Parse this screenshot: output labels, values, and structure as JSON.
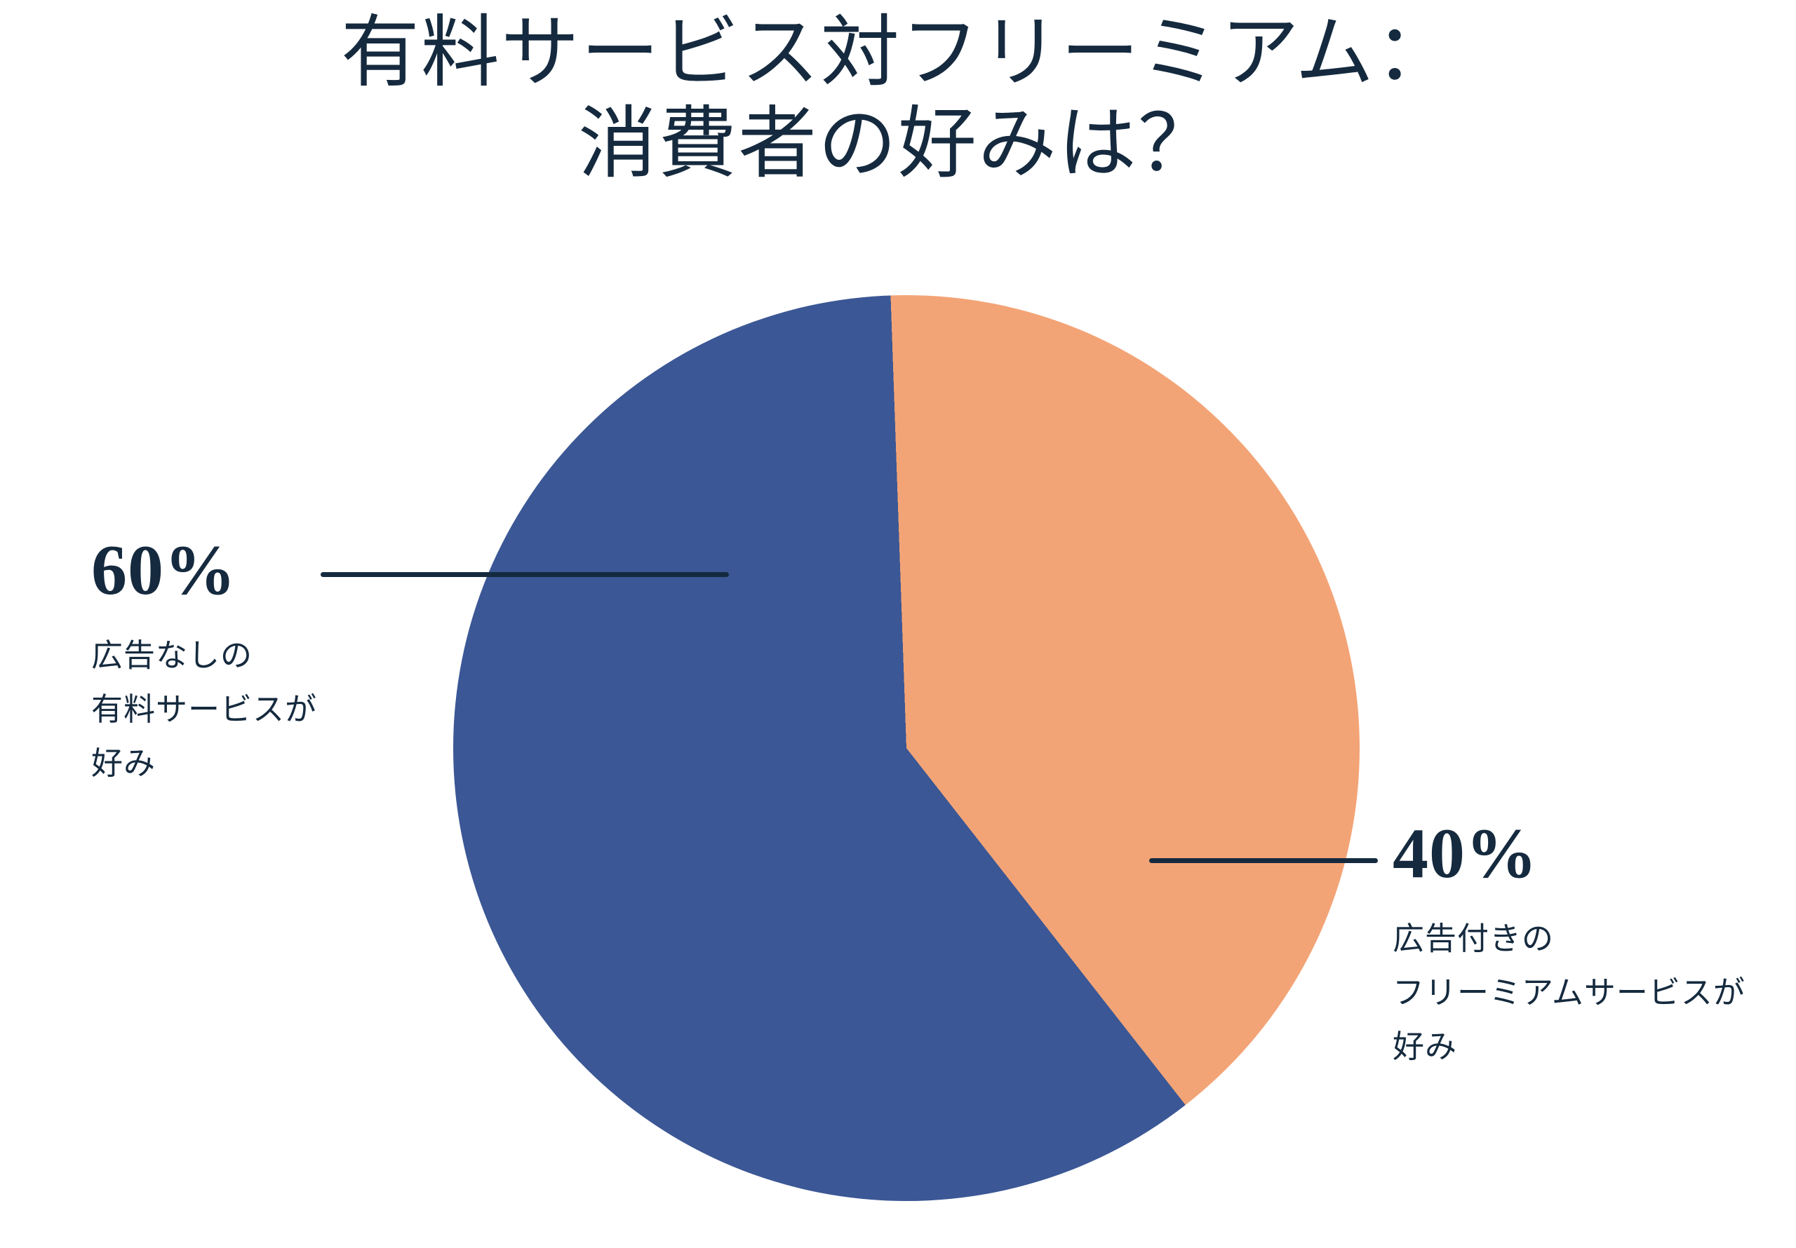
{
  "page": {
    "background": "#ffffff"
  },
  "colors": {
    "navy": "#152a3e",
    "blue": "#3b5795",
    "orange": "#f3a476"
  },
  "title": {
    "line1": "有料サービス対フリーミアム：",
    "line2": "消費者の好みは？"
  },
  "chart_data": {
    "type": "pie",
    "title": "有料サービス対フリーミアム：消費者の好みは？",
    "legend": "none",
    "label_style": "external-callouts-with-leader-lines",
    "start_angle_deg": -2,
    "direction": "clockwise",
    "slices": [
      {
        "name": "広告付きのフリーミアムサービスが好み",
        "value": 40,
        "percent_label": "40%",
        "color": "#f3a476",
        "callout_side": "right",
        "label_lines": [
          "広告付きの",
          "フリーミアムサービスが",
          "好み"
        ]
      },
      {
        "name": "広告なしの有料サービスが好み",
        "value": 60,
        "percent_label": "60%",
        "color": "#3b5795",
        "callout_side": "left",
        "label_lines": [
          "広告なしの",
          "有料サービスが",
          "好み"
        ]
      }
    ]
  }
}
